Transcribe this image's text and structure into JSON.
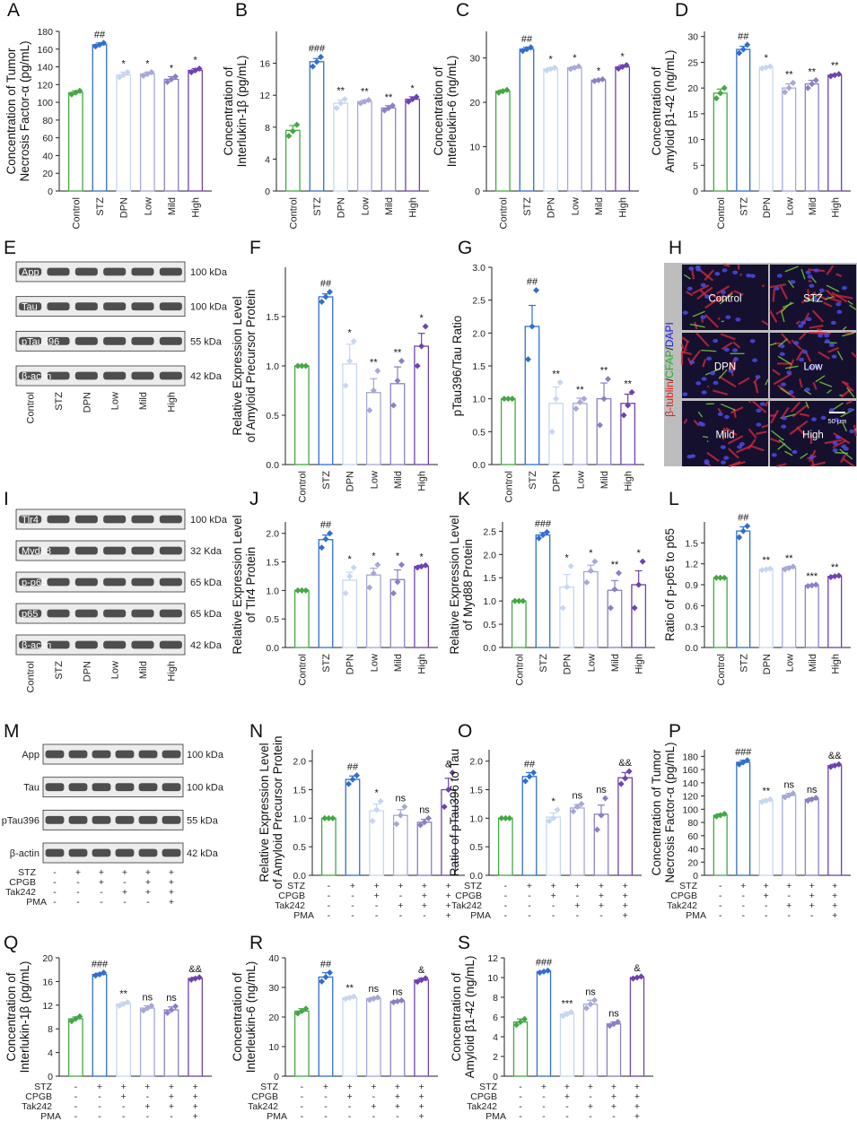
{
  "colors": {
    "control": "#43a843",
    "stz": "#2f6fd0",
    "dpn": "#c6d7f0",
    "low": "#a7a8d8",
    "mild": "#8a80c4",
    "high": "#6e42b0",
    "axis": "#222222",
    "blot_bg": "#ececec",
    "band": "#1a1a1a"
  },
  "panel_labels": [
    "A",
    "B",
    "C",
    "D",
    "E",
    "F",
    "G",
    "H",
    "I",
    "J",
    "K",
    "L",
    "M",
    "N",
    "O",
    "P",
    "Q",
    "R",
    "S"
  ],
  "group_names": [
    "Control",
    "STZ",
    "DPN",
    "Low",
    "Mild",
    "High"
  ],
  "treatment_table": {
    "rows": [
      "STZ",
      "CPGB",
      "Tak242",
      "PMA"
    ],
    "signs": [
      [
        "-",
        "+",
        "+",
        "+",
        "+",
        "+"
      ],
      [
        "-",
        "-",
        "+",
        "-",
        "+",
        "+"
      ],
      [
        "-",
        "-",
        "-",
        "+",
        "+",
        "+"
      ],
      [
        "-",
        "-",
        "-",
        "-",
        "-",
        "+"
      ]
    ]
  },
  "blots": {
    "E": {
      "bands": [
        {
          "name": "App",
          "kda": "100 kDa"
        },
        {
          "name": "Tau",
          "kda": "100 kDa"
        },
        {
          "name": "pTau396",
          "kda": "55 kDa"
        },
        {
          "name": "β-actin",
          "kda": "42 kDa"
        }
      ]
    },
    "I": {
      "bands": [
        {
          "name": "Tlr4",
          "kda": "100 kDa"
        },
        {
          "name": "Myd88",
          "kda": "32 Kda"
        },
        {
          "name": "p-p65",
          "kda": "65 kDa"
        },
        {
          "name": "p65",
          "kda": "65 kDa"
        },
        {
          "name": "β-actin",
          "kda": "42 kDa"
        }
      ]
    },
    "M": {
      "bands": [
        {
          "name": "App",
          "kda": "100 kDa"
        },
        {
          "name": "Tau",
          "kda": "100 kDa"
        },
        {
          "name": "pTau396",
          "kda": "55 kDa"
        },
        {
          "name": "β-actin",
          "kda": "42 kDa"
        }
      ]
    }
  },
  "micrograph": {
    "side_label_parts": [
      {
        "text": "β-tublin",
        "color": "#e02020"
      },
      {
        "text": "/",
        "color": "#222222"
      },
      {
        "text": "CFAP",
        "color": "#20b020"
      },
      {
        "text": "/",
        "color": "#222222"
      },
      {
        "text": "DAPI",
        "color": "#2020e0"
      }
    ],
    "tiles": [
      "Control",
      "STZ",
      "DPN",
      "Low",
      "Mild",
      "High"
    ],
    "scalebar": "50 μm"
  },
  "chart_data": [
    {
      "panel": "A",
      "type": "bar",
      "ylabel": [
        "Concentration of Tumor",
        "Necrosis Factor-α (pg/mL)"
      ],
      "ylim": [
        0,
        180
      ],
      "ticks": [
        0,
        20,
        40,
        60,
        80,
        100,
        120,
        140,
        160,
        180
      ],
      "categories": [
        "Control",
        "STZ",
        "DPN",
        "Low",
        "Mild",
        "High"
      ],
      "values": [
        111,
        165,
        131,
        132,
        126,
        136
      ],
      "errors": [
        2,
        2,
        3,
        2,
        3,
        2
      ],
      "points": [
        [
          109,
          111,
          113
        ],
        [
          163,
          165,
          167
        ],
        [
          128,
          131,
          134
        ],
        [
          130,
          132,
          134
        ],
        [
          123,
          126,
          129
        ],
        [
          134,
          136,
          138
        ]
      ],
      "annotations": [
        "",
        "##",
        "*",
        "*",
        "*",
        "*"
      ]
    },
    {
      "panel": "B",
      "type": "bar",
      "ylabel": [
        "Concentration of",
        "Interlukin-1β (pg/mL)"
      ],
      "ylim": [
        0,
        20
      ],
      "ticks": [
        0,
        4,
        8,
        12,
        16
      ],
      "categories": [
        "Control",
        "STZ",
        "DPN",
        "Low",
        "Mild",
        "High"
      ],
      "values": [
        7.6,
        16.2,
        11.0,
        11.2,
        10.4,
        11.5
      ],
      "errors": [
        0.6,
        0.4,
        0.4,
        0.2,
        0.3,
        0.3
      ],
      "points": [
        [
          6.9,
          7.5,
          8.3
        ],
        [
          15.6,
          16.2,
          16.8
        ],
        [
          10.4,
          11.0,
          11.5
        ],
        [
          11.0,
          11.2,
          11.4
        ],
        [
          10.1,
          10.4,
          10.7
        ],
        [
          11.2,
          11.5,
          11.8
        ]
      ],
      "annotations": [
        "",
        "###",
        "**",
        "**",
        "**",
        "*"
      ]
    },
    {
      "panel": "C",
      "type": "bar",
      "ylabel": [
        "Concentration of",
        "Interleukin-6 (ng/mL)"
      ],
      "ylim": [
        0,
        36
      ],
      "ticks": [
        0,
        10,
        20,
        30
      ],
      "categories": [
        "Control",
        "STZ",
        "DPN",
        "Low",
        "Mild",
        "High"
      ],
      "values": [
        22.5,
        32,
        27.5,
        27.8,
        25,
        28
      ],
      "errors": [
        0.3,
        0.4,
        0.3,
        0.3,
        0.2,
        0.4
      ],
      "points": [
        [
          22.2,
          22.5,
          22.8
        ],
        [
          31.6,
          32,
          32.4
        ],
        [
          27.2,
          27.5,
          27.8
        ],
        [
          27.5,
          27.8,
          28.1
        ],
        [
          24.8,
          25,
          25.2
        ],
        [
          27.6,
          28,
          28.4
        ]
      ],
      "annotations": [
        "",
        "##",
        "*",
        "*",
        "*",
        "*"
      ]
    },
    {
      "panel": "D",
      "type": "bar",
      "ylabel": [
        "Concentration of",
        "Amyloid β1-42 (ng/mL)"
      ],
      "ylim": [
        0,
        31
      ],
      "ticks": [
        0,
        5,
        10,
        15,
        20,
        25,
        30
      ],
      "categories": [
        "Control",
        "STZ",
        "DPN",
        "Low",
        "Mild",
        "High"
      ],
      "values": [
        19,
        27.5,
        24,
        20,
        20.8,
        22.5
      ],
      "errors": [
        0.8,
        0.6,
        0.2,
        0.8,
        0.7,
        0.2
      ],
      "points": [
        [
          18,
          19,
          20
        ],
        [
          26.8,
          27.5,
          28.4
        ],
        [
          23.8,
          24,
          24.2
        ],
        [
          19.2,
          20,
          21
        ],
        [
          20,
          20.8,
          21.5
        ],
        [
          22.3,
          22.5,
          22.7
        ]
      ],
      "annotations": [
        "",
        "##",
        "*",
        "**",
        "**",
        "**"
      ]
    },
    {
      "panel": "F",
      "type": "bar",
      "ylabel": [
        "Relative Expression Level",
        "of Amyloid Precursor Protein"
      ],
      "ylim": [
        0,
        2.0
      ],
      "ticks": [
        0.0,
        0.5,
        1.0,
        1.5
      ],
      "categories": [
        "Control",
        "STZ",
        "DPN",
        "Low",
        "Mild",
        "High"
      ],
      "values": [
        1,
        1.7,
        1.02,
        0.73,
        0.82,
        1.2
      ],
      "errors": [
        0,
        0.03,
        0.2,
        0.14,
        0.17,
        0.13
      ],
      "points": [
        [
          1,
          1,
          1
        ],
        [
          1.65,
          1.7,
          1.75
        ],
        [
          0.8,
          1.05,
          1.25
        ],
        [
          0.55,
          0.75,
          0.95
        ],
        [
          0.6,
          0.85,
          1.05
        ],
        [
          1.0,
          1.2,
          1.4
        ]
      ],
      "annotations": [
        "",
        "##",
        "*",
        "**",
        "**",
        "*"
      ]
    },
    {
      "panel": "G",
      "type": "bar",
      "ylabel": [
        "pTau396/Tau Ratio",
        ""
      ],
      "ylim": [
        0,
        3.0
      ],
      "ticks": [
        0.0,
        0.5,
        1.0,
        1.5,
        2.0,
        2.5,
        3.0
      ],
      "categories": [
        "Control",
        "STZ",
        "DPN",
        "Low",
        "Mild",
        "High"
      ],
      "values": [
        1,
        2.1,
        0.93,
        0.93,
        1.0,
        0.93
      ],
      "errors": [
        0,
        0.32,
        0.25,
        0.08,
        0.24,
        0.14
      ],
      "points": [
        [
          1,
          1,
          1
        ],
        [
          1.6,
          2.1,
          2.65
        ],
        [
          0.5,
          1.0,
          1.25
        ],
        [
          0.85,
          0.95,
          1.0
        ],
        [
          0.6,
          1.0,
          1.3
        ],
        [
          0.75,
          0.9,
          1.1
        ]
      ],
      "annotations": [
        "",
        "##",
        "**",
        "**",
        "**",
        "**"
      ]
    },
    {
      "panel": "J",
      "type": "bar",
      "ylabel": [
        "Relative Expression Level",
        "of Tlr4 Protein"
      ],
      "ylim": [
        0,
        2.2
      ],
      "ticks": [
        0.0,
        0.5,
        1.0,
        1.5,
        2.0
      ],
      "categories": [
        "Control",
        "STZ",
        "DPN",
        "Low",
        "Mild",
        "High"
      ],
      "values": [
        1,
        1.89,
        1.18,
        1.27,
        1.19,
        1.42
      ],
      "errors": [
        0,
        0.08,
        0.14,
        0.12,
        0.17,
        0.02
      ],
      "points": [
        [
          1,
          1,
          1
        ],
        [
          1.75,
          1.9,
          2.0
        ],
        [
          0.95,
          1.25,
          1.4
        ],
        [
          1.05,
          1.3,
          1.45
        ],
        [
          0.95,
          1.15,
          1.45
        ],
        [
          1.4,
          1.42,
          1.44
        ]
      ],
      "annotations": [
        "",
        "##",
        "*",
        "*",
        "*",
        "*"
      ]
    },
    {
      "panel": "K",
      "type": "bar",
      "ylabel": [
        "Relative Expression Level",
        "of Myd88 Protein"
      ],
      "ylim": [
        0,
        2.7
      ],
      "ticks": [
        0.0,
        0.5,
        1.0,
        1.5,
        2.0,
        2.5
      ],
      "categories": [
        "Control",
        "STZ",
        "DPN",
        "Low",
        "Mild",
        "High"
      ],
      "values": [
        1,
        2.42,
        1.3,
        1.63,
        1.23,
        1.35
      ],
      "errors": [
        0,
        0.05,
        0.27,
        0.14,
        0.21,
        0.3
      ],
      "points": [
        [
          1,
          1,
          1
        ],
        [
          2.35,
          2.42,
          2.48
        ],
        [
          0.85,
          1.3,
          1.75
        ],
        [
          1.4,
          1.65,
          1.85
        ],
        [
          0.85,
          1.25,
          1.6
        ],
        [
          0.85,
          1.35,
          1.85
        ]
      ],
      "annotations": [
        "",
        "###",
        "*",
        "*",
        "**",
        "*"
      ]
    },
    {
      "panel": "L",
      "type": "bar",
      "ylabel": [
        "Ratio of p-p65 to p65",
        ""
      ],
      "ylim": [
        0,
        1.8
      ],
      "ticks": [
        0.0,
        0.3,
        0.6,
        0.9,
        1.2,
        1.5
      ],
      "categories": [
        "Control",
        "STZ",
        "DPN",
        "Low",
        "Mild",
        "High"
      ],
      "values": [
        1,
        1.67,
        1.12,
        1.14,
        0.89,
        1.02
      ],
      "errors": [
        0,
        0.06,
        0.01,
        0.02,
        0.01,
        0.01
      ],
      "points": [
        [
          1,
          1,
          1
        ],
        [
          1.58,
          1.67,
          1.74
        ],
        [
          1.11,
          1.12,
          1.13
        ],
        [
          1.12,
          1.14,
          1.16
        ],
        [
          0.88,
          0.89,
          0.9
        ],
        [
          1.01,
          1.02,
          1.03
        ]
      ],
      "annotations": [
        "",
        "##",
        "**",
        "**",
        "***",
        "**"
      ]
    },
    {
      "panel": "N",
      "type": "bar",
      "table": true,
      "ylabel": [
        "Relative Expression Level",
        "of Amyloid Precursor Protein"
      ],
      "ylim": [
        0,
        2.2
      ],
      "ticks": [
        0.0,
        0.5,
        1.0,
        1.5,
        2.0
      ],
      "values": [
        1,
        1.68,
        1.13,
        1.05,
        0.93,
        1.5
      ],
      "errors": [
        0,
        0.06,
        0.12,
        0.1,
        0.05,
        0.2
      ],
      "points": [
        [
          1,
          1,
          1
        ],
        [
          1.6,
          1.68,
          1.75
        ],
        [
          0.95,
          1.15,
          1.3
        ],
        [
          0.9,
          1.05,
          1.2
        ],
        [
          0.88,
          0.93,
          1.0
        ],
        [
          1.2,
          1.5,
          1.8
        ]
      ],
      "annotations": [
        "",
        "##",
        "*",
        "ns",
        "ns",
        "&"
      ]
    },
    {
      "panel": "O",
      "type": "bar",
      "table": true,
      "ylabel": [
        "Ratio of pTau396 to Tau",
        ""
      ],
      "ylim": [
        0,
        2.2
      ],
      "ticks": [
        0.0,
        0.5,
        1.0,
        1.5,
        2.0
      ],
      "values": [
        1,
        1.73,
        1.02,
        1.18,
        1.07,
        1.71
      ],
      "errors": [
        0,
        0.07,
        0.07,
        0.06,
        0.16,
        0.09
      ],
      "points": [
        [
          1,
          1,
          1
        ],
        [
          1.65,
          1.73,
          1.8
        ],
        [
          0.95,
          1.0,
          1.15
        ],
        [
          1.12,
          1.2,
          1.25
        ],
        [
          0.8,
          1.05,
          1.35
        ],
        [
          1.6,
          1.7,
          1.82
        ]
      ],
      "annotations": [
        "",
        "##",
        "*",
        "ns",
        "ns",
        "&&"
      ]
    },
    {
      "panel": "P",
      "type": "bar",
      "table": true,
      "ylabel": [
        "Concentration of Tumor",
        "Necrosis Factor-α (pg/mL)"
      ],
      "ylim": [
        0,
        190
      ],
      "ticks": [
        0,
        20,
        40,
        60,
        80,
        100,
        120,
        140,
        160,
        180
      ],
      "values": [
        91,
        171,
        113,
        121,
        115,
        166
      ],
      "errors": [
        2,
        3,
        2,
        3,
        2,
        2
      ],
      "points": [
        [
          89,
          91,
          93
        ],
        [
          168,
          171,
          174
        ],
        [
          111,
          113,
          115
        ],
        [
          118,
          121,
          124
        ],
        [
          113,
          115,
          117
        ],
        [
          164,
          166,
          168
        ]
      ],
      "annotations": [
        "",
        "###",
        "**",
        "ns",
        "ns",
        "&&"
      ]
    },
    {
      "panel": "Q",
      "type": "bar",
      "table": true,
      "ylabel": [
        "Concentration of",
        "Interlukin-1β (pg/mL)"
      ],
      "ylim": [
        0,
        20
      ],
      "ticks": [
        0,
        4,
        8,
        12,
        16,
        20
      ],
      "values": [
        9.7,
        17.2,
        12.2,
        11.5,
        11.2,
        16.5
      ],
      "errors": [
        0.3,
        0.2,
        0.3,
        0.4,
        0.5,
        0.2
      ],
      "points": [
        [
          9.3,
          9.7,
          10.1
        ],
        [
          17,
          17.2,
          17.5
        ],
        [
          11.9,
          12.2,
          12.5
        ],
        [
          11.1,
          11.5,
          11.9
        ],
        [
          10.7,
          11.2,
          11.8
        ],
        [
          16.3,
          16.5,
          16.7
        ]
      ],
      "annotations": [
        "",
        "###",
        "**",
        "ns",
        "ns",
        "&&"
      ]
    },
    {
      "panel": "R",
      "type": "bar",
      "table": true,
      "ylabel": [
        "Concentration of",
        "Interleukin-6 (ng/mL)"
      ],
      "ylim": [
        0,
        40
      ],
      "ticks": [
        0,
        10,
        20,
        30,
        40
      ],
      "values": [
        22,
        33.5,
        26.5,
        26.2,
        25.3,
        32.5
      ],
      "errors": [
        0.8,
        1.5,
        0.4,
        0.4,
        0.3,
        0.6
      ],
      "points": [
        [
          21.2,
          22,
          22.8
        ],
        [
          32,
          33.5,
          35
        ],
        [
          26.1,
          26.5,
          26.9
        ],
        [
          25.8,
          26.2,
          26.6
        ],
        [
          25,
          25.3,
          25.6
        ],
        [
          31.9,
          32.5,
          33.1
        ]
      ],
      "annotations": [
        "",
        "##",
        "**",
        "ns",
        "ns",
        "&"
      ]
    },
    {
      "panel": "S",
      "type": "bar",
      "table": true,
      "ylabel": [
        "Concentration of",
        "Amyloid β1-42 (ng/mL)"
      ],
      "ylim": [
        0,
        12
      ],
      "ticks": [
        0,
        2,
        4,
        6,
        8,
        10,
        12
      ],
      "values": [
        5.5,
        10.6,
        6.3,
        7.3,
        5.3,
        10
      ],
      "errors": [
        0.3,
        0.05,
        0.2,
        0.4,
        0.2,
        0.05
      ],
      "points": [
        [
          5.2,
          5.5,
          5.8
        ],
        [
          10.5,
          10.6,
          10.7
        ],
        [
          6.1,
          6.3,
          6.5
        ],
        [
          6.9,
          7.3,
          7.7
        ],
        [
          5.1,
          5.3,
          5.5
        ],
        [
          9.9,
          10,
          10.1
        ]
      ],
      "annotations": [
        "",
        "###",
        "***",
        "ns",
        "ns",
        "&"
      ]
    }
  ]
}
